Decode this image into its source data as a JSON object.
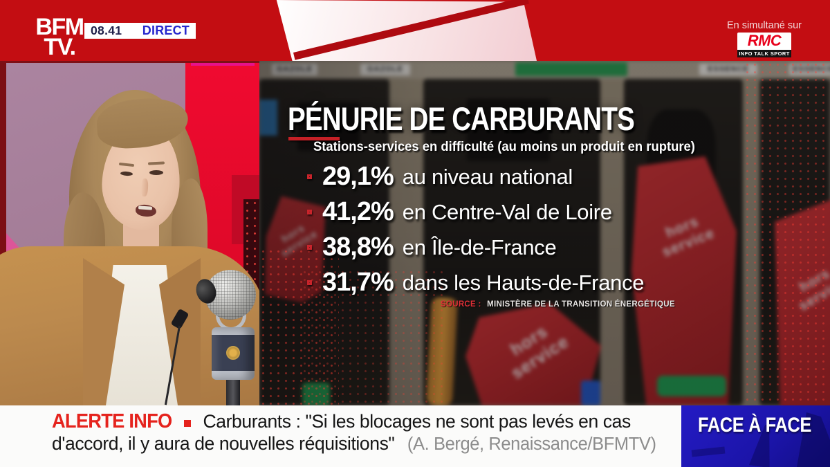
{
  "header": {
    "channel_logo": {
      "line1": "BFM",
      "line2": "TV."
    },
    "time": "08.41",
    "live_badge": "DIRECT",
    "simulcast_label": "En simultané sur",
    "rmc_logo": "RMC",
    "rmc_tagline": "INFO TALK SPORT"
  },
  "infographic": {
    "title": "PÉNURIE DE CARBURANTS",
    "subtitle": "Stations-services en difficulté (au moins un produit en rupture)",
    "stats": [
      {
        "value": "29,1%",
        "label": "au niveau national"
      },
      {
        "value": "41,2%",
        "label": "en Centre-Val de Loire"
      },
      {
        "value": "38,8%",
        "label": "en Île-de-France"
      },
      {
        "value": "31,7%",
        "label": "dans les Hauts-de-France"
      }
    ],
    "source_label": "SOURCE :",
    "source_text": "MINISTÈRE DE LA TRANSITION ÉNERGÉTIQUE"
  },
  "footage": {
    "pump_signs": [
      "GAZOLE",
      "GAZOLE",
      "ESSENCE",
      "ESSENCE"
    ],
    "nozzle_cover_text": "hors service"
  },
  "ticker": {
    "alert_label": "ALERTE INFO",
    "line1": "Carburants : \"Si les blocages ne sont pas levés en cas",
    "line2": "d'accord, il y aura de nouvelles réquisitions\"",
    "attribution": "(A. Bergé, Renaissance/BFMTV)",
    "program_title": "FACE À FACE"
  },
  "colors": {
    "bfm_red": "#c30d12",
    "alert_red": "#e5231d",
    "direct_blue": "#2727cd",
    "time_navy": "#20204a",
    "program_blue": "#1d16b2",
    "accent_red": "#c62026",
    "rmc_red": "#e8001b"
  }
}
